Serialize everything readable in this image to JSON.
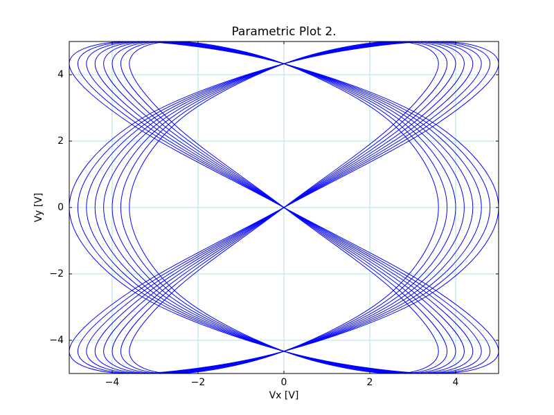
{
  "chart_data": {
    "type": "parametric",
    "title": "Parametric Plot 2.",
    "x_label": "Vx [V]",
    "y_label": "Vy [V]",
    "xlim": [
      -5,
      5
    ],
    "ylim": [
      -5,
      5
    ],
    "xticks": [
      {
        "value": -4,
        "label": "−4"
      },
      {
        "value": -2,
        "label": "−2"
      },
      0,
      2,
      4
    ],
    "yticks": [
      {
        "value": -4,
        "label": "−4"
      },
      {
        "value": -2,
        "label": "−2"
      },
      0,
      2,
      4
    ],
    "grid": true,
    "grid_color": "#b0e0e6",
    "series": [
      {
        "color": "#0000ff",
        "x": [
          0,
          3.54,
          5.0,
          3.54,
          0,
          -3.54,
          -5.0,
          -3.54,
          0,
          3.54,
          5.0,
          3.54,
          0,
          -3.54,
          -5.0,
          -3.54,
          0,
          3.54,
          5.0,
          3.54,
          0,
          -3.54,
          -5.0,
          -3.54,
          0
        ],
        "y": [
          0,
          2.5,
          4.33,
          5,
          4.33,
          2.5,
          0,
          -2.5,
          -4.33,
          -5,
          -4.33,
          -2.5,
          0,
          2.5,
          4.33,
          5,
          4.33,
          2.5,
          0,
          -2.5,
          -4.33,
          -5,
          -4.33,
          -2.5,
          0
        ]
      },
      {
        "color": "#0000ff",
        "x": [
          0,
          3.39,
          4.8,
          3.39,
          0,
          -3.39,
          -4.8,
          -3.39,
          0,
          3.39,
          4.8,
          3.39,
          0,
          -3.39,
          -4.8,
          -3.39,
          0,
          3.39,
          4.8,
          3.39,
          0,
          -3.39,
          -4.8,
          -3.39,
          0
        ],
        "y": [
          0,
          2.5,
          4.33,
          5,
          4.33,
          2.5,
          0,
          -2.5,
          -4.33,
          -5,
          -4.33,
          -2.5,
          0,
          2.5,
          4.33,
          5,
          4.33,
          2.5,
          0,
          -2.5,
          -4.33,
          -5,
          -4.33,
          -2.5,
          0
        ]
      },
      {
        "color": "#0000ff",
        "x": [
          0,
          3.25,
          4.6,
          3.25,
          0,
          -3.25,
          -4.6,
          -3.25,
          0,
          3.25,
          4.6,
          3.25,
          0,
          -3.25,
          -4.6,
          -3.25,
          0,
          3.25,
          4.6,
          3.25,
          0,
          -3.25,
          -4.6,
          -3.25,
          0
        ],
        "y": [
          0,
          2.5,
          4.33,
          5,
          4.33,
          2.5,
          0,
          -2.5,
          -4.33,
          -5,
          -4.33,
          -2.5,
          0,
          2.5,
          4.33,
          5,
          4.33,
          2.5,
          0,
          -2.5,
          -4.33,
          -5,
          -4.33,
          -2.5,
          0
        ]
      },
      {
        "color": "#0000ff",
        "x": [
          0,
          3.11,
          4.4,
          3.11,
          0,
          -3.11,
          -4.4,
          -3.11,
          0,
          3.11,
          4.4,
          3.11,
          0,
          -3.11,
          -4.4,
          -3.11,
          0,
          3.11,
          4.4,
          3.11,
          0,
          -3.11,
          -4.4,
          -3.11,
          0
        ],
        "y": [
          0,
          2.5,
          4.33,
          5,
          4.33,
          2.5,
          0,
          -2.5,
          -4.33,
          -5,
          -4.33,
          -2.5,
          0,
          2.5,
          4.33,
          5,
          4.33,
          2.5,
          0,
          -2.5,
          -4.33,
          -5,
          -4.33,
          -2.5,
          0
        ]
      },
      {
        "color": "#0000ff",
        "x": [
          0,
          2.97,
          4.2,
          2.97,
          0,
          -2.97,
          -4.2,
          -2.97,
          0,
          2.97,
          4.2,
          2.97,
          0,
          -2.97,
          -4.2,
          -2.97,
          0,
          2.97,
          4.2,
          2.97,
          0,
          -2.97,
          -4.2,
          -2.97,
          0
        ],
        "y": [
          0,
          2.5,
          4.33,
          5,
          4.33,
          2.5,
          0,
          -2.5,
          -4.33,
          -5,
          -4.33,
          -2.5,
          0,
          2.5,
          4.33,
          5,
          4.33,
          2.5,
          0,
          -2.5,
          -4.33,
          -5,
          -4.33,
          -2.5,
          0
        ]
      },
      {
        "color": "#0000ff",
        "x": [
          0,
          2.83,
          4.0,
          2.83,
          0,
          -2.83,
          -4.0,
          -2.83,
          0,
          2.83,
          4.0,
          2.83,
          0,
          -2.83,
          -4.0,
          -2.83,
          0,
          2.83,
          4.0,
          2.83,
          0,
          -2.83,
          -4.0,
          -2.83,
          0
        ],
        "y": [
          0,
          2.5,
          4.33,
          5,
          4.33,
          2.5,
          0,
          -2.5,
          -4.33,
          -5,
          -4.33,
          -2.5,
          0,
          2.5,
          4.33,
          5,
          4.33,
          2.5,
          0,
          -2.5,
          -4.33,
          -5,
          -4.33,
          -2.5,
          0
        ]
      },
      {
        "color": "#0000ff",
        "x": [
          0,
          2.69,
          3.8,
          2.69,
          0,
          -2.69,
          -3.8,
          -2.69,
          0,
          2.69,
          3.8,
          2.69,
          0,
          -2.69,
          -3.8,
          -2.69,
          0,
          2.69,
          3.8,
          2.69,
          0,
          -2.69,
          -3.8,
          -2.69,
          0
        ],
        "y": [
          0,
          2.5,
          4.33,
          5,
          4.33,
          2.5,
          0,
          -2.5,
          -4.33,
          -5,
          -4.33,
          -2.5,
          0,
          2.5,
          4.33,
          5,
          4.33,
          2.5,
          0,
          -2.5,
          -4.33,
          -5,
          -4.33,
          -2.5,
          0
        ]
      },
      {
        "color": "#0000ff",
        "x": [
          0,
          2.55,
          3.6,
          2.55,
          0,
          -2.55,
          -3.6,
          -2.55,
          0,
          2.55,
          3.6,
          2.55,
          0,
          -2.55,
          -3.6,
          -2.55,
          0,
          2.55,
          3.6,
          2.55,
          0,
          -2.55,
          -3.6,
          -2.55,
          0
        ],
        "y": [
          0,
          2.5,
          4.33,
          5,
          4.33,
          2.5,
          0,
          -2.5,
          -4.33,
          -5,
          -4.33,
          -2.5,
          0,
          2.5,
          4.33,
          5,
          4.33,
          2.5,
          0,
          -2.5,
          -4.33,
          -5,
          -4.33,
          -2.5,
          0
        ]
      }
    ]
  }
}
